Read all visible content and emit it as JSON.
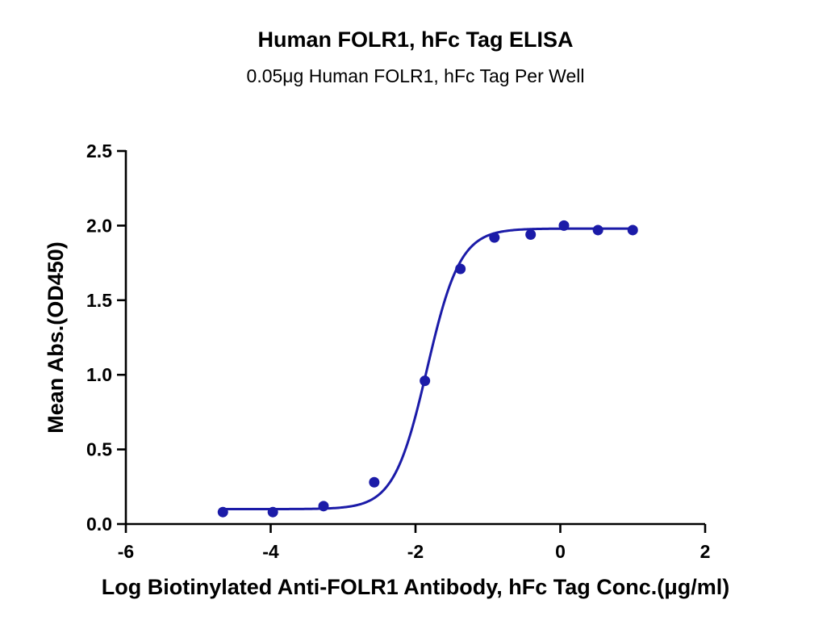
{
  "chart_data": {
    "type": "scatter",
    "title": "Human FOLR1, hFc Tag ELISA",
    "subtitle": "0.05μg Human FOLR1, hFc Tag Per Well",
    "xlabel": "Log Biotinylated Anti-FOLR1 Antibody, hFc Tag Conc.(μg/ml)",
    "ylabel": "Mean Abs.(OD450)",
    "xlim": [
      -6,
      2
    ],
    "ylim": [
      0,
      2.5
    ],
    "x_ticks": [
      -6,
      -4,
      -2,
      0,
      2
    ],
    "x_tick_labels": [
      "-6",
      "-4",
      "-2",
      "0",
      "2"
    ],
    "y_ticks": [
      0,
      0.5,
      1.0,
      1.5,
      2.0,
      2.5
    ],
    "y_tick_labels": [
      "0.0",
      "0.5",
      "1.0",
      "1.5",
      "2.0",
      "2.5"
    ],
    "series_color": "#1b1ba8",
    "grid": false,
    "legend": "none",
    "points": {
      "x": [
        -4.66,
        -3.97,
        -3.27,
        -2.57,
        -1.87,
        -1.38,
        -0.91,
        -0.41,
        0.05,
        0.52,
        1.0
      ],
      "y": [
        0.08,
        0.08,
        0.12,
        0.28,
        0.96,
        1.71,
        1.92,
        1.94,
        2.0,
        1.97,
        1.97
      ]
    },
    "fit_curve": {
      "model": "4PL",
      "bottom": 0.1,
      "top": 1.98,
      "logEC50": -1.84,
      "hill": 1.9,
      "x_range": [
        -4.66,
        1.0
      ]
    }
  }
}
